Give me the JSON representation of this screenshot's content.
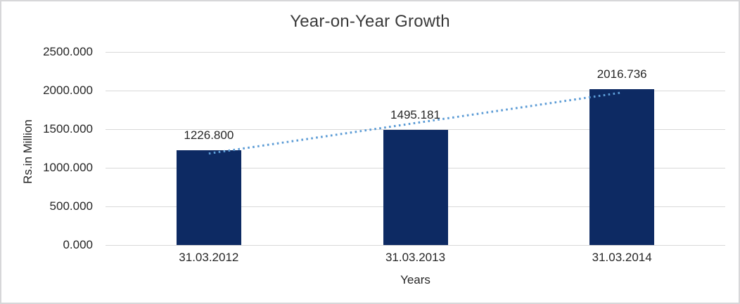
{
  "chart_data": {
    "type": "bar",
    "title": "Year-on-Year Growth",
    "xlabel": "Years",
    "ylabel": "Rs.in Million",
    "categories": [
      "31.03.2012",
      "31.03.2013",
      "31.03.2014"
    ],
    "values": [
      1226.8,
      1495.181,
      2016.736
    ],
    "value_labels": [
      "1226.800",
      "1495.181",
      "2016.736"
    ],
    "ylim": [
      0,
      2500
    ],
    "ytick_interval": 500,
    "ytick_labels_top_to_bottom": [
      "2500.000",
      "2000.000",
      "1500.000",
      "1000.000",
      "500.000",
      "0.000"
    ],
    "grid": true,
    "legend": "none",
    "trendline": {
      "type": "linear",
      "style": "dotted",
      "color": "#5b9bd5",
      "start_value": 1184.602,
      "end_value": 1974.541
    },
    "colors": {
      "bar": "#0d2a63",
      "trendline": "#5b9bd5",
      "gridline": "#d9d9d9",
      "text": "#262626",
      "title_text": "#3a3a3a",
      "frame_border": "#d7d7d9",
      "background": "#ffffff"
    }
  }
}
